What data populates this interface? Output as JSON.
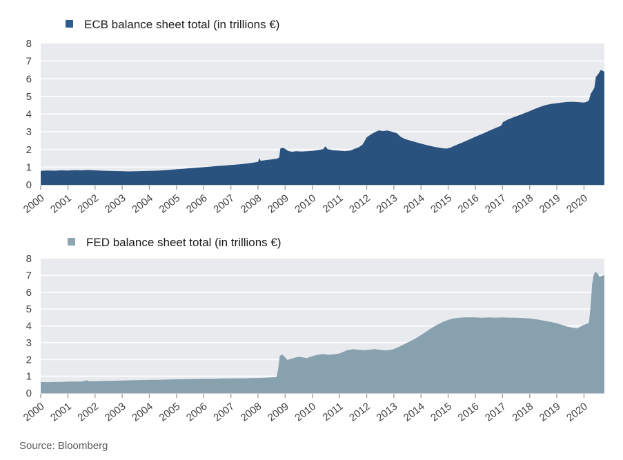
{
  "page": {
    "source_note": "Source: Bloomberg"
  },
  "colors": {
    "plot_bg": "#E9EAEE",
    "gridline": "#FAFBFC",
    "axis_line": "#C9CDD2",
    "tick": "#A6A6A6",
    "axis_label": "#3F3F3F",
    "source_text": "#595959"
  },
  "axis": {
    "ylim": [
      0,
      8
    ],
    "y_ticks": [
      0,
      1,
      2,
      3,
      4,
      5,
      6,
      7,
      8
    ],
    "x_ticks": [
      2000,
      2001,
      2002,
      2003,
      2004,
      2005,
      2006,
      2007,
      2008,
      2009,
      2010,
      2011,
      2012,
      2013,
      2014,
      2015,
      2016,
      2017,
      2018,
      2019,
      2020
    ],
    "x_range": [
      2000,
      2020.75
    ],
    "grid": "horizontal-only",
    "legend_position": "top-left"
  },
  "chart_data": [
    {
      "type": "area",
      "title": "ECB balance sheet total (in trillions €)",
      "legend_color": "#2E5C8E",
      "fill_color": "#2A527E",
      "xlabel": "",
      "ylabel": "",
      "ylim": [
        0,
        8
      ],
      "series": [
        {
          "name": "ECB balance sheet total",
          "points": [
            [
              2000.0,
              0.79
            ],
            [
              2000.25,
              0.81
            ],
            [
              2000.5,
              0.8
            ],
            [
              2000.75,
              0.82
            ],
            [
              2001.0,
              0.81
            ],
            [
              2001.25,
              0.83
            ],
            [
              2001.5,
              0.82
            ],
            [
              2001.75,
              0.84
            ],
            [
              2002.0,
              0.82
            ],
            [
              2002.25,
              0.8
            ],
            [
              2002.5,
              0.79
            ],
            [
              2002.75,
              0.78
            ],
            [
              2003.0,
              0.77
            ],
            [
              2003.25,
              0.76
            ],
            [
              2003.5,
              0.77
            ],
            [
              2003.75,
              0.78
            ],
            [
              2004.0,
              0.79
            ],
            [
              2004.25,
              0.8
            ],
            [
              2004.5,
              0.82
            ],
            [
              2004.75,
              0.85
            ],
            [
              2005.0,
              0.88
            ],
            [
              2005.25,
              0.91
            ],
            [
              2005.5,
              0.94
            ],
            [
              2005.75,
              0.97
            ],
            [
              2006.0,
              1.0
            ],
            [
              2006.25,
              1.03
            ],
            [
              2006.5,
              1.06
            ],
            [
              2006.75,
              1.09
            ],
            [
              2007.0,
              1.12
            ],
            [
              2007.25,
              1.15
            ],
            [
              2007.5,
              1.19
            ],
            [
              2007.75,
              1.24
            ],
            [
              2008.0,
              1.3
            ],
            [
              2008.05,
              1.51
            ],
            [
              2008.1,
              1.36
            ],
            [
              2008.3,
              1.4
            ],
            [
              2008.5,
              1.44
            ],
            [
              2008.7,
              1.48
            ],
            [
              2008.78,
              1.55
            ],
            [
              2008.82,
              2.05
            ],
            [
              2008.9,
              2.1
            ],
            [
              2009.0,
              2.04
            ],
            [
              2009.1,
              1.92
            ],
            [
              2009.25,
              1.87
            ],
            [
              2009.4,
              1.9
            ],
            [
              2009.6,
              1.88
            ],
            [
              2009.8,
              1.9
            ],
            [
              2010.0,
              1.92
            ],
            [
              2010.2,
              1.96
            ],
            [
              2010.4,
              2.02
            ],
            [
              2010.48,
              2.18
            ],
            [
              2010.56,
              2.02
            ],
            [
              2010.75,
              1.96
            ],
            [
              2011.0,
              1.93
            ],
            [
              2011.2,
              1.91
            ],
            [
              2011.4,
              1.94
            ],
            [
              2011.55,
              2.04
            ],
            [
              2011.7,
              2.12
            ],
            [
              2011.85,
              2.28
            ],
            [
              2012.0,
              2.68
            ],
            [
              2012.15,
              2.85
            ],
            [
              2012.3,
              2.98
            ],
            [
              2012.45,
              3.08
            ],
            [
              2012.6,
              3.04
            ],
            [
              2012.75,
              3.07
            ],
            [
              2012.9,
              3.02
            ],
            [
              2013.0,
              2.97
            ],
            [
              2013.1,
              2.93
            ],
            [
              2013.25,
              2.72
            ],
            [
              2013.4,
              2.6
            ],
            [
              2013.6,
              2.5
            ],
            [
              2013.8,
              2.42
            ],
            [
              2014.0,
              2.33
            ],
            [
              2014.2,
              2.25
            ],
            [
              2014.4,
              2.18
            ],
            [
              2014.6,
              2.12
            ],
            [
              2014.8,
              2.07
            ],
            [
              2014.95,
              2.05
            ],
            [
              2015.1,
              2.12
            ],
            [
              2015.3,
              2.25
            ],
            [
              2015.5,
              2.38
            ],
            [
              2015.75,
              2.55
            ],
            [
              2016.0,
              2.72
            ],
            [
              2016.25,
              2.88
            ],
            [
              2016.5,
              3.05
            ],
            [
              2016.75,
              3.22
            ],
            [
              2016.95,
              3.35
            ],
            [
              2017.02,
              3.55
            ],
            [
              2017.2,
              3.7
            ],
            [
              2017.4,
              3.82
            ],
            [
              2017.6,
              3.93
            ],
            [
              2017.8,
              4.05
            ],
            [
              2018.0,
              4.17
            ],
            [
              2018.2,
              4.3
            ],
            [
              2018.4,
              4.42
            ],
            [
              2018.6,
              4.52
            ],
            [
              2018.8,
              4.58
            ],
            [
              2019.0,
              4.62
            ],
            [
              2019.2,
              4.66
            ],
            [
              2019.4,
              4.69
            ],
            [
              2019.6,
              4.7
            ],
            [
              2019.8,
              4.68
            ],
            [
              2020.0,
              4.65
            ],
            [
              2020.1,
              4.7
            ],
            [
              2020.18,
              4.78
            ],
            [
              2020.24,
              5.12
            ],
            [
              2020.3,
              5.28
            ],
            [
              2020.38,
              5.48
            ],
            [
              2020.44,
              6.12
            ],
            [
              2020.52,
              6.25
            ],
            [
              2020.62,
              6.5
            ],
            [
              2020.75,
              6.4
            ]
          ]
        }
      ]
    },
    {
      "type": "area",
      "title": "FED balance sheet total (in trillions €)",
      "legend_color": "#8CA6B3",
      "fill_color": "#87A1AF",
      "xlabel": "",
      "ylabel": "",
      "ylim": [
        0,
        8
      ],
      "series": [
        {
          "name": "FED balance sheet total",
          "points": [
            [
              2000.0,
              0.66
            ],
            [
              2000.25,
              0.65
            ],
            [
              2000.5,
              0.66
            ],
            [
              2000.75,
              0.67
            ],
            [
              2001.0,
              0.68
            ],
            [
              2001.25,
              0.69
            ],
            [
              2001.5,
              0.69
            ],
            [
              2001.7,
              0.76
            ],
            [
              2001.78,
              0.7
            ],
            [
              2002.0,
              0.71
            ],
            [
              2002.25,
              0.72
            ],
            [
              2002.5,
              0.73
            ],
            [
              2002.75,
              0.74
            ],
            [
              2003.0,
              0.75
            ],
            [
              2003.25,
              0.76
            ],
            [
              2003.5,
              0.77
            ],
            [
              2003.75,
              0.78
            ],
            [
              2004.0,
              0.79
            ],
            [
              2004.25,
              0.79
            ],
            [
              2004.5,
              0.8
            ],
            [
              2004.75,
              0.81
            ],
            [
              2005.0,
              0.82
            ],
            [
              2005.25,
              0.83
            ],
            [
              2005.5,
              0.83
            ],
            [
              2005.75,
              0.84
            ],
            [
              2006.0,
              0.85
            ],
            [
              2006.25,
              0.85
            ],
            [
              2006.5,
              0.86
            ],
            [
              2006.75,
              0.87
            ],
            [
              2007.0,
              0.87
            ],
            [
              2007.25,
              0.88
            ],
            [
              2007.5,
              0.88
            ],
            [
              2007.75,
              0.89
            ],
            [
              2008.0,
              0.9
            ],
            [
              2008.25,
              0.91
            ],
            [
              2008.5,
              0.93
            ],
            [
              2008.68,
              0.96
            ],
            [
              2008.74,
              1.4
            ],
            [
              2008.8,
              2.22
            ],
            [
              2008.9,
              2.28
            ],
            [
              2009.0,
              2.12
            ],
            [
              2009.08,
              1.98
            ],
            [
              2009.2,
              2.03
            ],
            [
              2009.35,
              2.1
            ],
            [
              2009.5,
              2.16
            ],
            [
              2009.65,
              2.12
            ],
            [
              2009.8,
              2.08
            ],
            [
              2010.0,
              2.2
            ],
            [
              2010.2,
              2.28
            ],
            [
              2010.4,
              2.32
            ],
            [
              2010.6,
              2.28
            ],
            [
              2010.8,
              2.31
            ],
            [
              2011.0,
              2.36
            ],
            [
              2011.15,
              2.46
            ],
            [
              2011.3,
              2.56
            ],
            [
              2011.5,
              2.61
            ],
            [
              2011.7,
              2.58
            ],
            [
              2011.9,
              2.55
            ],
            [
              2012.1,
              2.58
            ],
            [
              2012.3,
              2.62
            ],
            [
              2012.5,
              2.57
            ],
            [
              2012.7,
              2.54
            ],
            [
              2012.9,
              2.58
            ],
            [
              2013.0,
              2.62
            ],
            [
              2013.2,
              2.76
            ],
            [
              2013.4,
              2.92
            ],
            [
              2013.6,
              3.08
            ],
            [
              2013.8,
              3.25
            ],
            [
              2014.0,
              3.45
            ],
            [
              2014.2,
              3.66
            ],
            [
              2014.4,
              3.88
            ],
            [
              2014.6,
              4.07
            ],
            [
              2014.8,
              4.23
            ],
            [
              2015.0,
              4.36
            ],
            [
              2015.2,
              4.44
            ],
            [
              2015.4,
              4.48
            ],
            [
              2015.6,
              4.5
            ],
            [
              2015.8,
              4.51
            ],
            [
              2016.0,
              4.5
            ],
            [
              2016.25,
              4.48
            ],
            [
              2016.5,
              4.5
            ],
            [
              2016.75,
              4.49
            ],
            [
              2017.0,
              4.5
            ],
            [
              2017.25,
              4.49
            ],
            [
              2017.5,
              4.48
            ],
            [
              2017.75,
              4.46
            ],
            [
              2018.0,
              4.44
            ],
            [
              2018.25,
              4.39
            ],
            [
              2018.5,
              4.32
            ],
            [
              2018.75,
              4.24
            ],
            [
              2019.0,
              4.15
            ],
            [
              2019.2,
              4.05
            ],
            [
              2019.4,
              3.95
            ],
            [
              2019.6,
              3.88
            ],
            [
              2019.75,
              3.85
            ],
            [
              2019.9,
              3.98
            ],
            [
              2020.0,
              4.06
            ],
            [
              2020.1,
              4.12
            ],
            [
              2020.18,
              4.18
            ],
            [
              2020.24,
              5.1
            ],
            [
              2020.3,
              6.5
            ],
            [
              2020.36,
              7.05
            ],
            [
              2020.42,
              7.22
            ],
            [
              2020.5,
              7.12
            ],
            [
              2020.56,
              6.92
            ],
            [
              2020.64,
              6.96
            ],
            [
              2020.75,
              7.02
            ]
          ]
        }
      ]
    }
  ]
}
